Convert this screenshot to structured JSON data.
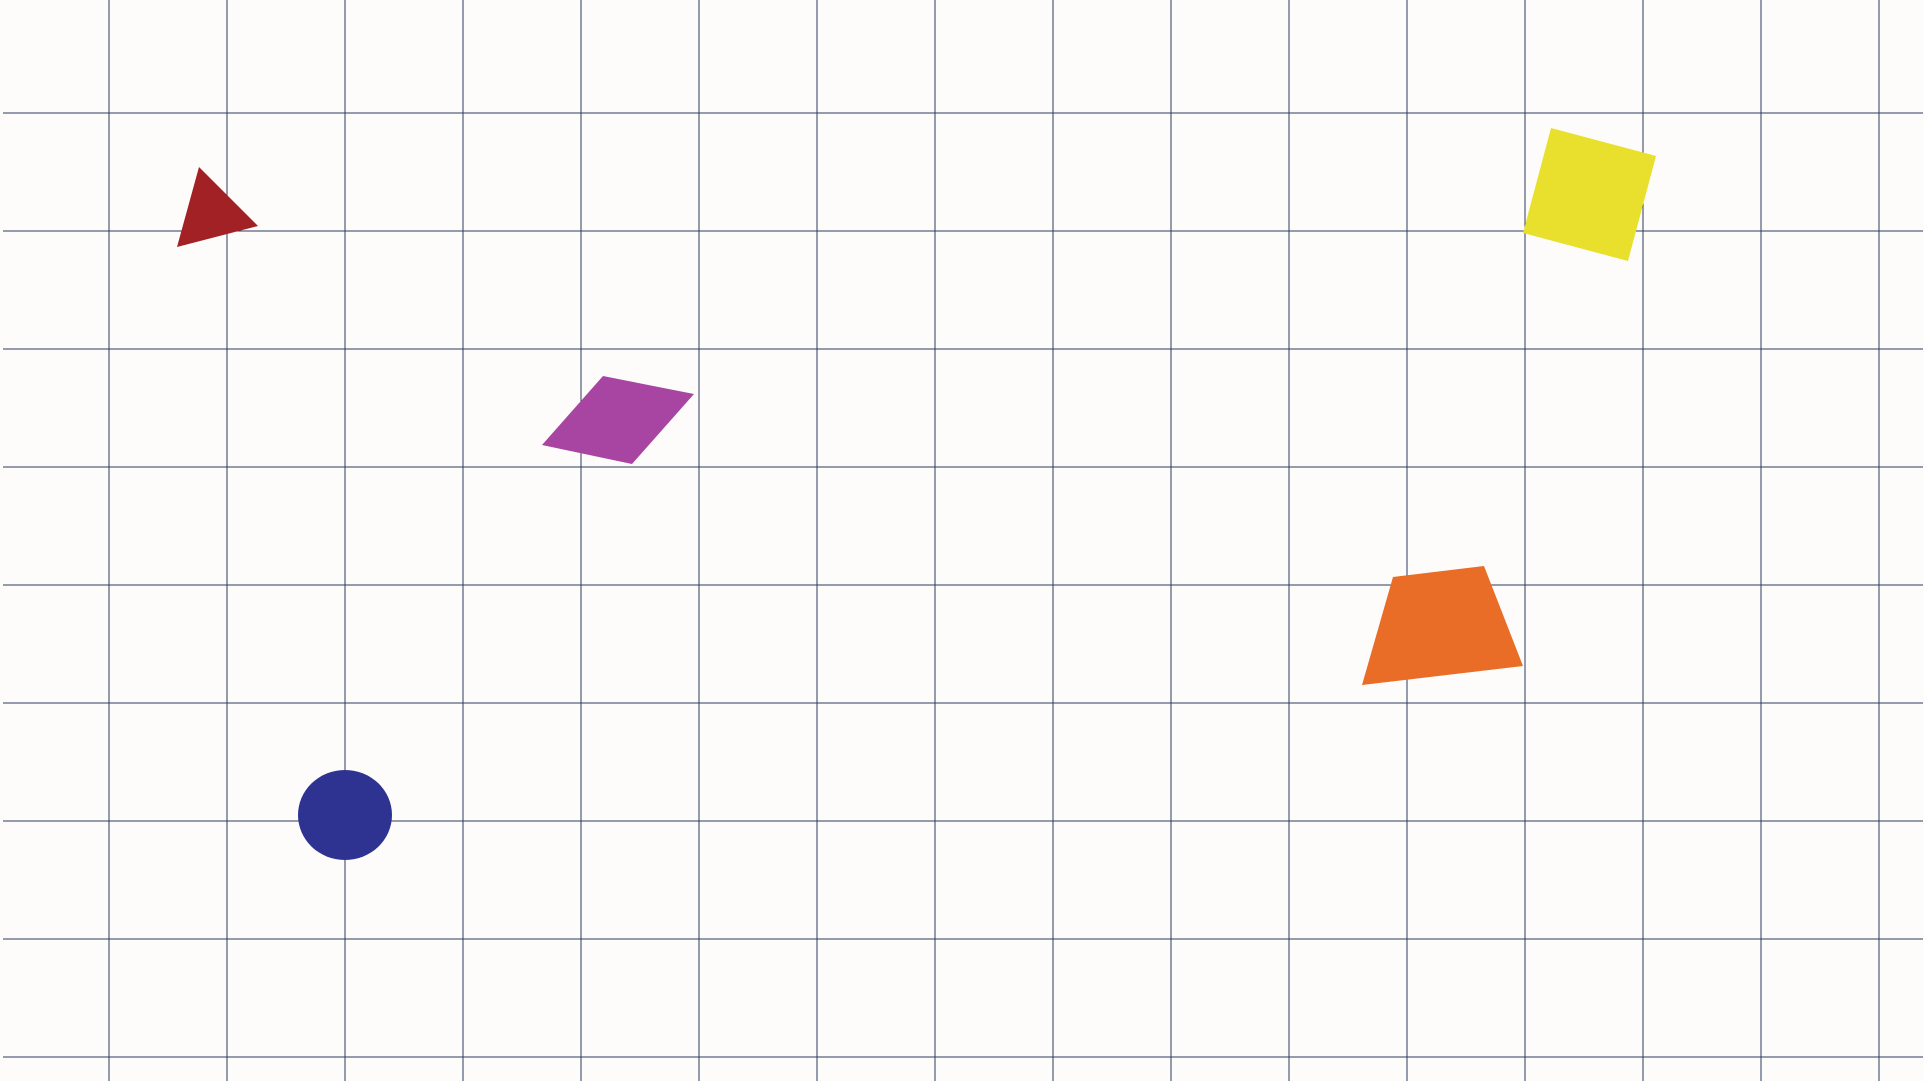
{
  "colors": {
    "background": "#fdfcfb",
    "grid_line": "#2b3a5e",
    "triangle": "#a12124",
    "parallelogram": "#a845a3",
    "square": "#e8e02c",
    "trapezoid": "#e96c27",
    "circle": "#2e3392"
  },
  "grid": {
    "columns": 16,
    "rows": 9,
    "visible": true
  },
  "shapes": [
    {
      "id": "triangle",
      "kind": "triangle",
      "color_key": "triangle"
    },
    {
      "id": "square",
      "kind": "square",
      "color_key": "square"
    },
    {
      "id": "parallelogram",
      "kind": "parallelogram",
      "color_key": "parallelogram"
    },
    {
      "id": "trapezoid",
      "kind": "trapezoid",
      "color_key": "trapezoid"
    },
    {
      "id": "circle",
      "kind": "circle",
      "color_key": "circle"
    }
  ]
}
